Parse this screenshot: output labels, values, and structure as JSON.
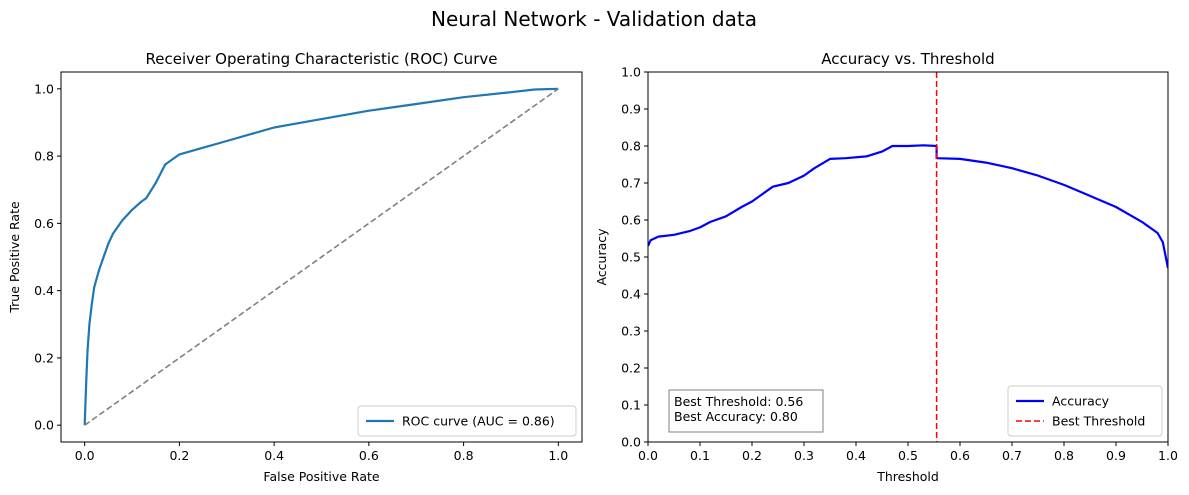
{
  "suptitle": "Neural Network - Validation data",
  "chart_data": [
    {
      "type": "line",
      "title": "Receiver Operating Characteristic (ROC) Curve",
      "xlabel": "False Positive Rate",
      "ylabel": "True Positive Rate",
      "xlim": [
        -0.05,
        1.05
      ],
      "ylim": [
        -0.05,
        1.05
      ],
      "xticks": [
        "0.0",
        "0.2",
        "0.4",
        "0.6",
        "0.8",
        "1.0"
      ],
      "yticks": [
        "0.0",
        "0.2",
        "0.4",
        "0.6",
        "0.8",
        "1.0"
      ],
      "grid": false,
      "legend": {
        "position": "lower-right",
        "entries": [
          "ROC curve (AUC = 0.86)"
        ]
      },
      "series": [
        {
          "name": "ROC curve (AUC = 0.86)",
          "color": "#1f77b4",
          "x": [
            0.0,
            0.003,
            0.006,
            0.01,
            0.015,
            0.02,
            0.03,
            0.04,
            0.05,
            0.06,
            0.07,
            0.08,
            0.09,
            0.1,
            0.12,
            0.13,
            0.15,
            0.17,
            0.2,
            0.25,
            0.3,
            0.35,
            0.4,
            0.5,
            0.6,
            0.7,
            0.8,
            0.9,
            0.95,
            1.0
          ],
          "y": [
            0.0,
            0.12,
            0.22,
            0.3,
            0.36,
            0.41,
            0.46,
            0.5,
            0.54,
            0.57,
            0.59,
            0.61,
            0.625,
            0.64,
            0.665,
            0.675,
            0.72,
            0.775,
            0.805,
            0.825,
            0.845,
            0.865,
            0.885,
            0.91,
            0.935,
            0.955,
            0.975,
            0.99,
            0.998,
            1.0
          ]
        },
        {
          "color": "#808080",
          "dashed": true,
          "x": [
            0.0,
            1.0
          ],
          "y": [
            0.0,
            1.0
          ]
        }
      ]
    },
    {
      "type": "line",
      "title": "Accuracy vs. Threshold",
      "xlabel": "Threshold",
      "ylabel": "Accuracy",
      "xlim": [
        0.0,
        1.0
      ],
      "ylim": [
        0.0,
        1.0
      ],
      "xticks": [
        "0.0",
        "0.1",
        "0.2",
        "0.3",
        "0.4",
        "0.5",
        "0.6",
        "0.7",
        "0.8",
        "0.9",
        "1.0"
      ],
      "yticks": [
        "0.0",
        "0.1",
        "0.2",
        "0.3",
        "0.4",
        "0.5",
        "0.6",
        "0.7",
        "0.8",
        "0.9",
        "1.0"
      ],
      "grid": false,
      "legend": {
        "position": "lower-right",
        "entries": [
          "Accuracy",
          "Best Threshold"
        ]
      },
      "series": [
        {
          "name": "Accuracy",
          "color": "#0000ff",
          "x": [
            0.0,
            0.005,
            0.02,
            0.05,
            0.08,
            0.1,
            0.12,
            0.15,
            0.18,
            0.2,
            0.22,
            0.24,
            0.27,
            0.3,
            0.32,
            0.35,
            0.38,
            0.42,
            0.45,
            0.47,
            0.5,
            0.53,
            0.555,
            0.555,
            0.6,
            0.65,
            0.7,
            0.75,
            0.8,
            0.85,
            0.9,
            0.95,
            0.98,
            0.99,
            1.0
          ],
          "y": [
            0.53,
            0.545,
            0.555,
            0.56,
            0.57,
            0.58,
            0.595,
            0.61,
            0.635,
            0.65,
            0.67,
            0.69,
            0.7,
            0.72,
            0.74,
            0.765,
            0.767,
            0.772,
            0.785,
            0.8,
            0.8,
            0.802,
            0.8,
            0.767,
            0.765,
            0.755,
            0.74,
            0.72,
            0.695,
            0.665,
            0.635,
            0.595,
            0.565,
            0.54,
            0.47
          ]
        },
        {
          "name": "Best Threshold",
          "color": "#ff0000",
          "dashed": true,
          "vline_x": 0.555
        }
      ],
      "annotation": [
        "Best Threshold: 0.56",
        "Best Accuracy: 0.80"
      ]
    }
  ]
}
